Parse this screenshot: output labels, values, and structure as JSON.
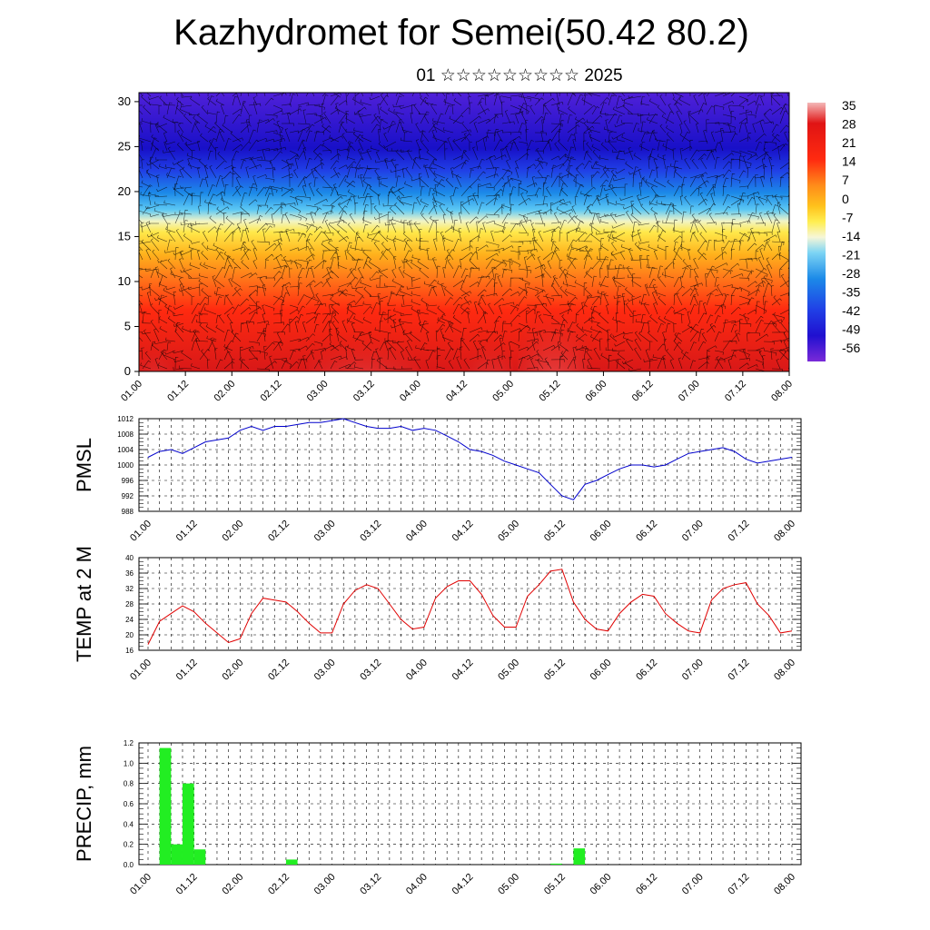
{
  "title": "Kazhydromet for Semei(50.42 80.2)",
  "subtitle": "01 ☆☆☆☆☆☆☆☆☆ 2025",
  "colorbar_labels": [
    "35",
    "28",
    "21",
    "14",
    "7",
    "0",
    "-7",
    "-14",
    "-21",
    "-28",
    "-35",
    "-42",
    "-49",
    "-56"
  ],
  "time_labels": [
    "01.00",
    "01.12",
    "02.00",
    "02.12",
    "03.00",
    "03.12",
    "04.00",
    "04.12",
    "05.00",
    "05.12",
    "06.00",
    "06.12",
    "07.00",
    "07.12",
    "08.00"
  ],
  "chart_data": [
    {
      "type": "heatmap",
      "title": "Kazhydromet for Semei(50.42 80.2)",
      "y_ticks": [
        0,
        5,
        10,
        15,
        20,
        25,
        30
      ],
      "ylim": [
        0,
        31
      ],
      "x": [
        "01.00",
        "01.12",
        "02.00",
        "02.12",
        "03.00",
        "03.12",
        "04.00",
        "04.12",
        "05.00",
        "05.12",
        "06.00",
        "06.12",
        "07.00",
        "07.12",
        "08.00"
      ],
      "colorbar": {
        "min": -56,
        "max": 35,
        "labels": [
          35,
          28,
          21,
          14,
          7,
          0,
          -7,
          -14,
          -21,
          -28,
          -35,
          -42,
          -49,
          -56
        ]
      },
      "colors": {
        "cold": "#6a1cd6",
        "mid_blue": "#2090f0",
        "yellow": "#ffe84a",
        "orange": "#ff8c1a",
        "red": "#d81818",
        "hot": "#f4a0a0"
      }
    },
    {
      "type": "line",
      "ylabel": "PMSL",
      "ylim": [
        988,
        1012
      ],
      "y_ticks": [
        988,
        992,
        996,
        1000,
        1004,
        1008,
        1012
      ],
      "color": "#0000cc",
      "series": [
        {
          "values": [
            1002,
            1003.5,
            1004,
            1003,
            1004.5,
            1006,
            1006.5,
            1007,
            1009,
            1010,
            1009,
            1010,
            1010,
            1010.5,
            1011,
            1011,
            1011.5,
            1012,
            1011,
            1010,
            1009.5,
            1009.5,
            1010,
            1009,
            1009.5,
            1009,
            1007.5,
            1006,
            1004,
            1003.5,
            1002.5,
            1001,
            1000,
            999,
            998,
            995,
            992,
            991,
            995,
            996,
            997.5,
            999,
            1000,
            1000,
            999.5,
            1000,
            1001.5,
            1003,
            1003.5,
            1004,
            1004.5,
            1003.5,
            1001.5,
            1000.5,
            1001,
            1001.5,
            1002
          ]
        }
      ]
    },
    {
      "type": "line",
      "ylabel": "TEMP at 2 M",
      "ylim": [
        16,
        40
      ],
      "y_ticks": [
        16,
        20,
        24,
        28,
        32,
        36,
        40
      ],
      "color": "#e00000",
      "series": [
        {
          "values": [
            17.5,
            23.5,
            25.5,
            27.5,
            26,
            23,
            20.5,
            18,
            19,
            25.5,
            29.5,
            29,
            28.5,
            26,
            23,
            20.5,
            20.5,
            28,
            31.5,
            33,
            32,
            28,
            24,
            21.5,
            22,
            29.5,
            32.5,
            34,
            34,
            30.5,
            25,
            22,
            22,
            30,
            33,
            36.5,
            37,
            28.5,
            24,
            21.5,
            21,
            25.5,
            28.5,
            30.5,
            30,
            25.5,
            23,
            21,
            20.5,
            29,
            32,
            33,
            33.5,
            28,
            25,
            20.5,
            21
          ]
        }
      ]
    },
    {
      "type": "bar",
      "ylabel": "PRECIP, mm",
      "ylim": [
        0,
        1.2
      ],
      "y_ticks": [
        0.0,
        0.2,
        0.4,
        0.6,
        0.8,
        1.0,
        1.2
      ],
      "color": "#22ee22",
      "bars": [
        {
          "t": 3,
          "value": 1.15
        },
        {
          "t": 6,
          "value": 0.2
        },
        {
          "t": 9,
          "value": 0.8
        },
        {
          "t": 12,
          "value": 0.15
        },
        {
          "t": 36,
          "value": 0.05
        },
        {
          "t": 105,
          "value": 0.01
        },
        {
          "t": 111,
          "value": 0.16
        }
      ]
    }
  ]
}
